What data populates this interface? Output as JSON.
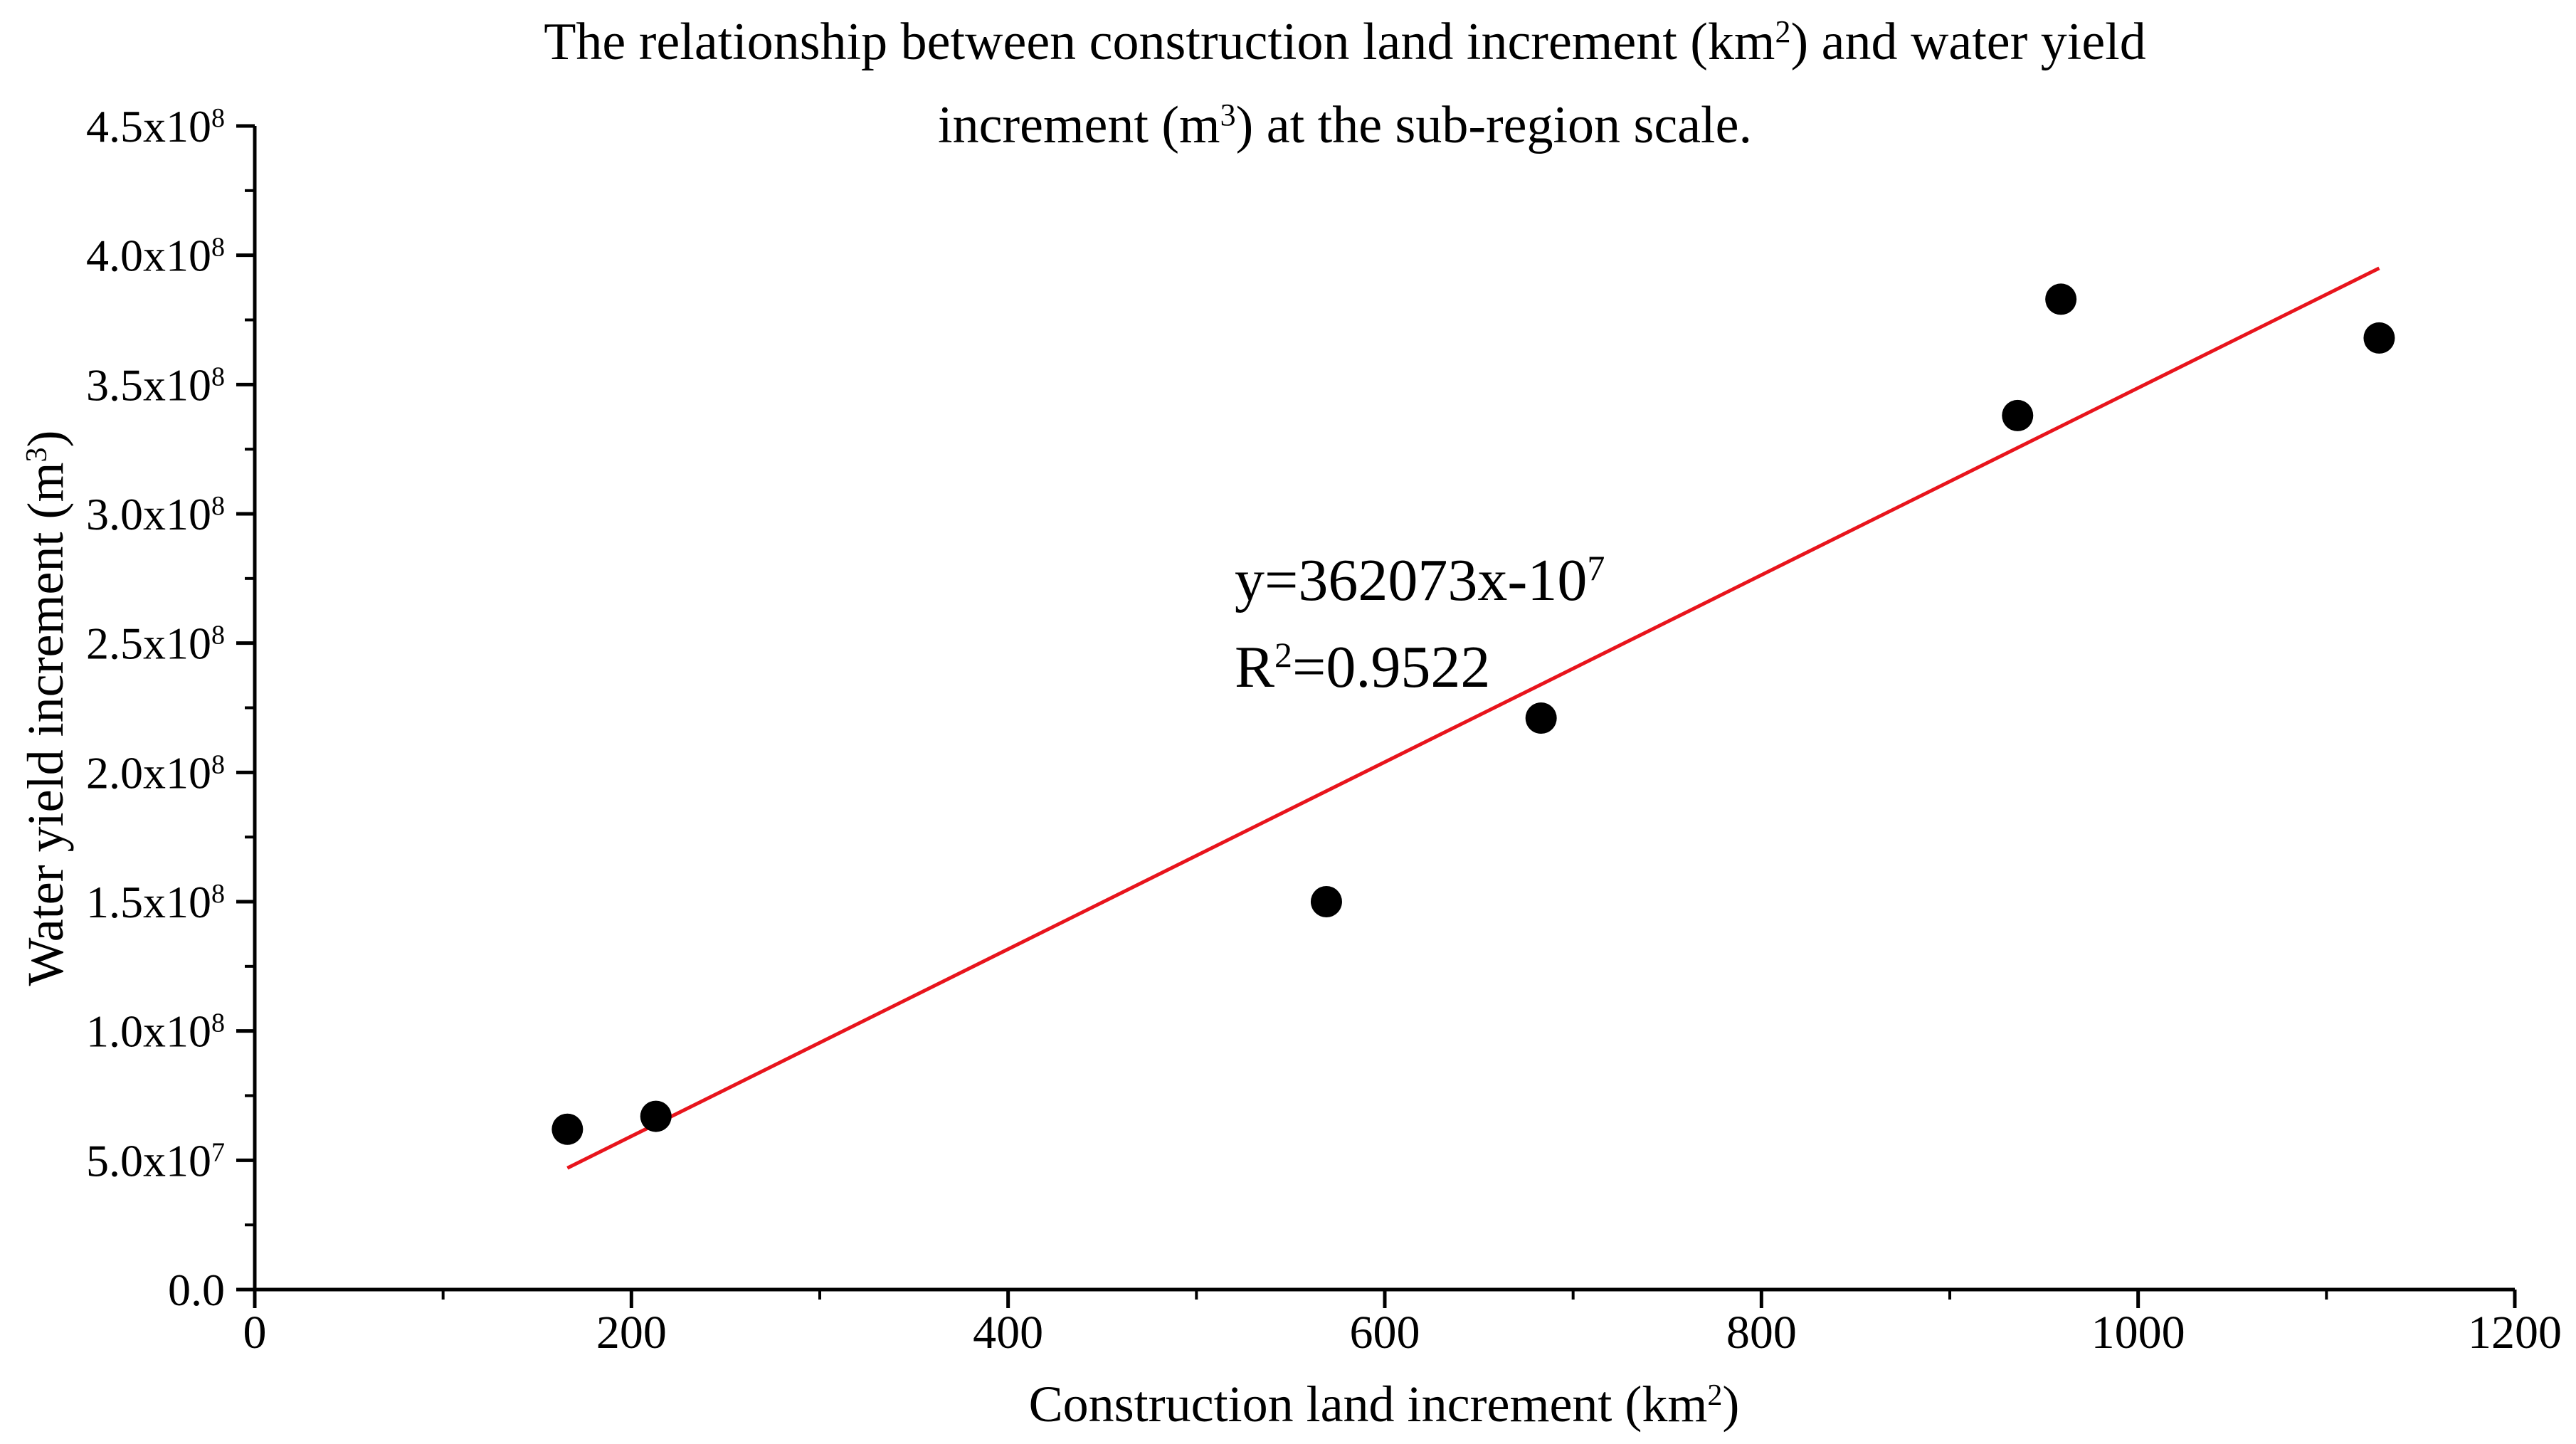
{
  "chart_data": {
    "type": "scatter",
    "title_line1_pre": "The relationship between construction land increment (km",
    "title_line1_sup": "2",
    "title_line1_post": ") and water yield",
    "title_line2_pre": "increment (m",
    "title_line2_sup": "3",
    "title_line2_post": ") at the sub-region scale.",
    "xlabel_pre": "Construction land increment (km",
    "xlabel_sup": "2",
    "xlabel_post": ")",
    "ylabel_pre": "Water yield increment (m",
    "ylabel_sup": "3",
    "ylabel_post": ")",
    "xlim": [
      0,
      1200
    ],
    "ylim": [
      0,
      450000000
    ],
    "x_ticks": [
      {
        "value": 0,
        "label": "0"
      },
      {
        "value": 200,
        "label": "200"
      },
      {
        "value": 400,
        "label": "400"
      },
      {
        "value": 600,
        "label": "600"
      },
      {
        "value": 800,
        "label": "800"
      },
      {
        "value": 1000,
        "label": "1000"
      },
      {
        "value": 1200,
        "label": "1200"
      }
    ],
    "y_ticks": [
      {
        "value": 0,
        "mant": "0.0",
        "exp": ""
      },
      {
        "value": 50000000,
        "mant": "5.0x10",
        "exp": "7"
      },
      {
        "value": 100000000,
        "mant": "1.0x10",
        "exp": "8"
      },
      {
        "value": 150000000,
        "mant": "1.5x10",
        "exp": "8"
      },
      {
        "value": 200000000,
        "mant": "2.0x10",
        "exp": "8"
      },
      {
        "value": 250000000,
        "mant": "2.5x10",
        "exp": "8"
      },
      {
        "value": 300000000,
        "mant": "3.0x10",
        "exp": "8"
      },
      {
        "value": 350000000,
        "mant": "3.5x10",
        "exp": "8"
      },
      {
        "value": 400000000,
        "mant": "4.0x10",
        "exp": "8"
      },
      {
        "value": 450000000,
        "mant": "4.5x10",
        "exp": "8"
      }
    ],
    "points": [
      {
        "x": 166,
        "y": 62000000
      },
      {
        "x": 213,
        "y": 67000000
      },
      {
        "x": 569,
        "y": 150000000
      },
      {
        "x": 683,
        "y": 221000000
      },
      {
        "x": 936,
        "y": 338000000
      },
      {
        "x": 959,
        "y": 383000000
      },
      {
        "x": 1128,
        "y": 368000000
      }
    ],
    "fit_line": {
      "x": [
        166,
        1128
      ],
      "y": [
        47000000,
        395000000
      ]
    },
    "equation_pre": "y=362073x-10",
    "equation_sup": "7",
    "r2_pre": "R",
    "r2_sup": "2",
    "r2_post": "=0.9522",
    "marker_color": "#000000",
    "fit_color": "#e8141c",
    "grid": false,
    "legend": "none"
  }
}
